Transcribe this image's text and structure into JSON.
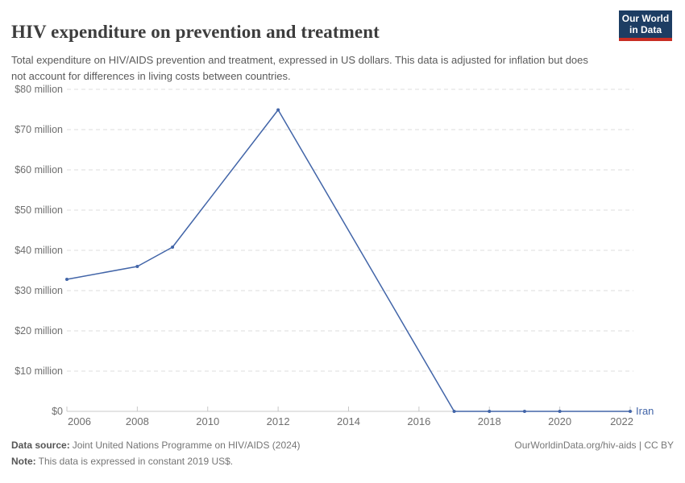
{
  "header": {
    "title": "HIV expenditure on prevention and treatment",
    "subtitle": "Total expenditure on HIV/AIDS prevention and treatment, expressed in US dollars. This data is adjusted for inflation but does not account for differences in living costs between countries.",
    "logo": {
      "line1": "Our World",
      "line2": "in Data"
    }
  },
  "chart_data": {
    "type": "line",
    "title": "HIV expenditure on prevention and treatment",
    "entity_label": "Iran",
    "xlim": [
      2006,
      2022
    ],
    "ylim_million_usd": [
      0,
      80
    ],
    "grid": "horizontal-dashed",
    "legend_position": "end-of-line-label",
    "x_ticks": [
      2006,
      2008,
      2010,
      2012,
      2014,
      2016,
      2018,
      2020,
      2022
    ],
    "y_ticks": [
      {
        "value": 0,
        "label": "$0"
      },
      {
        "value": 10,
        "label": "$10 million"
      },
      {
        "value": 20,
        "label": "$20 million"
      },
      {
        "value": 30,
        "label": "$30 million"
      },
      {
        "value": 40,
        "label": "$40 million"
      },
      {
        "value": 50,
        "label": "$50 million"
      },
      {
        "value": 60,
        "label": "$60 million"
      },
      {
        "value": 70,
        "label": "$70 million"
      },
      {
        "value": 80,
        "label": "$80 million"
      }
    ],
    "series": [
      {
        "name": "Iran",
        "color": "#4265A8",
        "points": [
          {
            "year": 2006,
            "value_million_usd": 32.8
          },
          {
            "year": 2008,
            "value_million_usd": 36.0
          },
          {
            "year": 2009,
            "value_million_usd": 40.8
          },
          {
            "year": 2012,
            "value_million_usd": 74.9
          },
          {
            "year": 2017,
            "value_million_usd": 0
          },
          {
            "year": 2018,
            "value_million_usd": 0
          },
          {
            "year": 2019,
            "value_million_usd": 0
          },
          {
            "year": 2020,
            "value_million_usd": 0
          },
          {
            "year": 2022,
            "value_million_usd": 0
          }
        ]
      }
    ]
  },
  "footer": {
    "source_label": "Data source:",
    "source_text": "Joint United Nations Programme on HIV/AIDS (2024)",
    "note_label": "Note:",
    "note_text": "This data is expressed in constant 2019 US$.",
    "credit": "OurWorldinData.org/hiv-aids | CC BY"
  },
  "colors": {
    "line": "#4265A8",
    "gridline": "#dddddd",
    "axis": "#c8c8c8",
    "tick_label": "#6e6e6e",
    "logo_bg": "#1d3d63",
    "logo_accent": "#c82d23"
  }
}
